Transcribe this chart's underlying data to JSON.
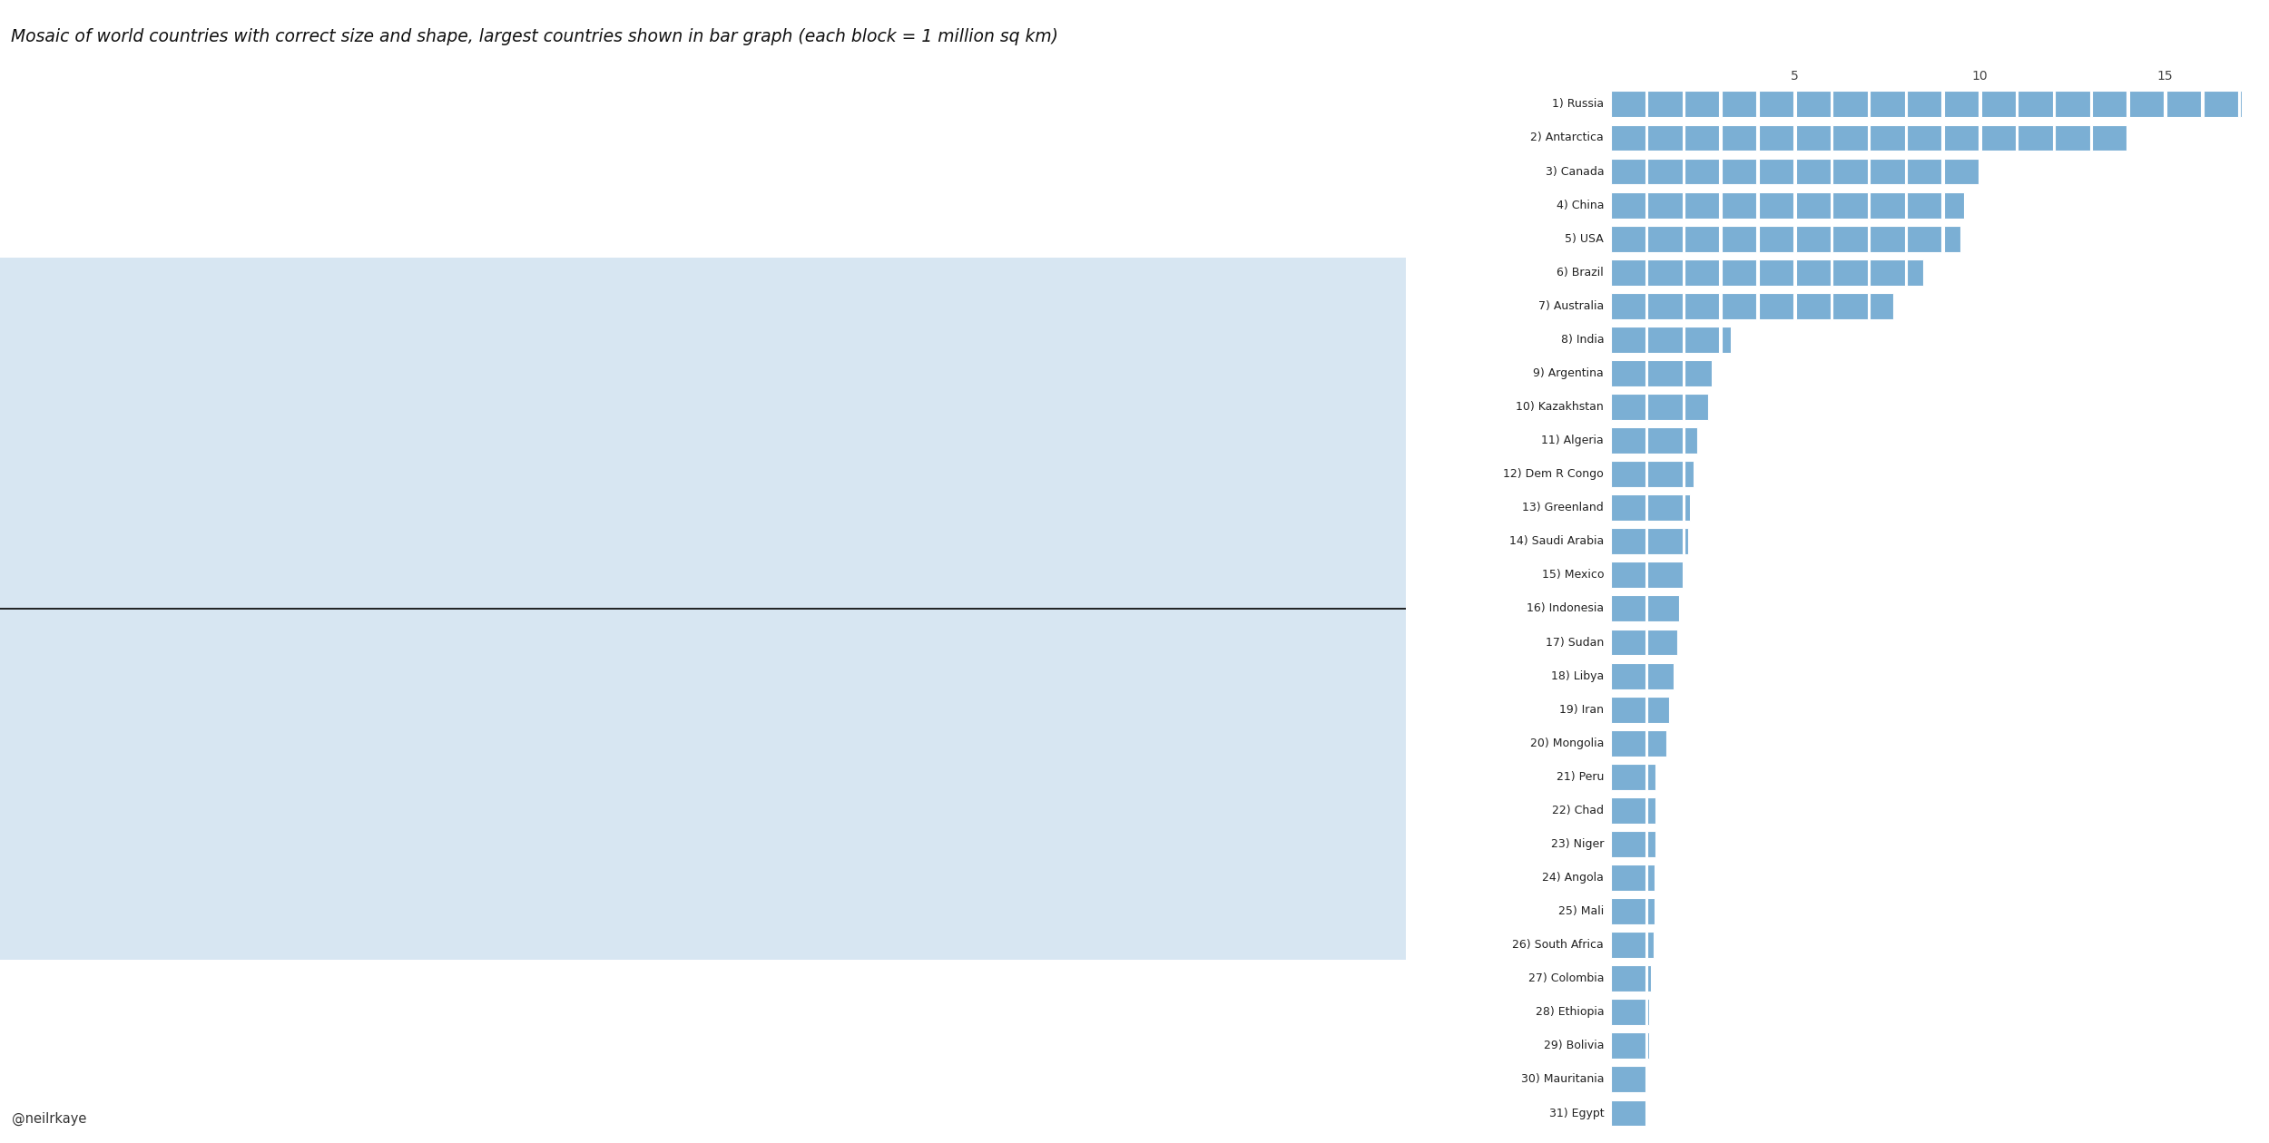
{
  "title": "Mosaic of world countries with correct size and shape, largest countries shown in bar graph (each block = 1 million sq km)",
  "title_style": "italic",
  "title_fontsize": 13.5,
  "credit": "@neilrkaye",
  "bar_color": "#7bafd4",
  "map_color": "#7bafd4",
  "map_edge_color": "#4a7fa8",
  "background_color": "#ffffff",
  "equator_color": "#000000",
  "countries": [
    "1) Russia",
    "2) Antarctica",
    "3) Canada",
    "4) China",
    "5) USA",
    "6) Brazil",
    "7) Australia",
    "8) India",
    "9) Argentina",
    "10) Kazakhstan",
    "11) Algeria",
    "12) Dem R Congo",
    "13) Greenland",
    "14) Saudi Arabia",
    "15) Mexico",
    "16) Indonesia",
    "17) Sudan",
    "18) Libya",
    "19) Iran",
    "20) Mongolia",
    "21) Peru",
    "22) Chad",
    "23) Niger",
    "24) Angola",
    "25) Mali",
    "26) South Africa",
    "27) Colombia",
    "28) Ethiopia",
    "29) Bolivia",
    "30) Mauritania",
    "31) Egypt"
  ],
  "areas_million_sq_km": [
    17.1,
    14.0,
    10.0,
    9.6,
    9.5,
    8.5,
    7.7,
    3.3,
    2.8,
    2.7,
    2.4,
    2.3,
    2.2,
    2.15,
    2.0,
    1.9,
    1.86,
    1.76,
    1.65,
    1.56,
    1.28,
    1.28,
    1.27,
    1.25,
    1.24,
    1.22,
    1.14,
    1.1,
    1.1,
    1.03,
    1.01
  ],
  "xticks": [
    5,
    10,
    15
  ],
  "bar_xlim": [
    0,
    17.5
  ]
}
